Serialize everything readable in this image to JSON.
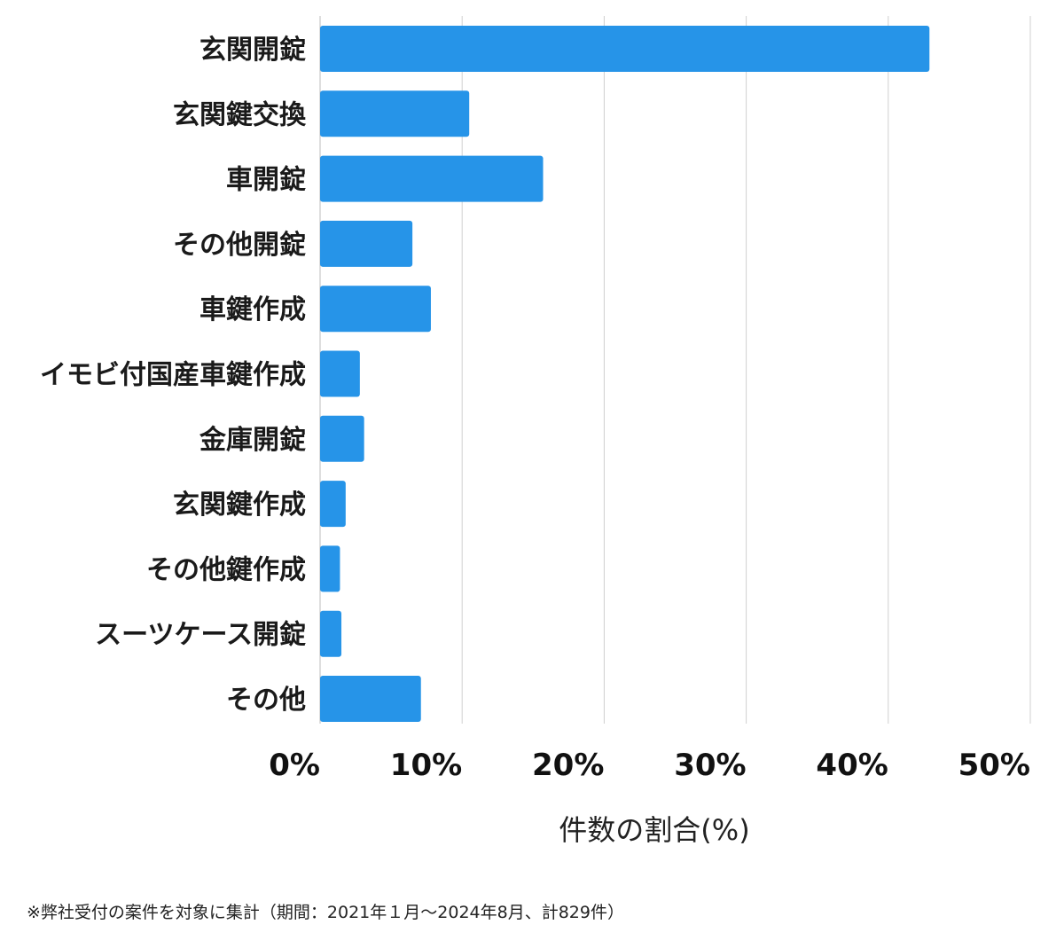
{
  "chart_data": {
    "type": "bar",
    "orientation": "horizontal",
    "categories": [
      "玄関開錠",
      "玄関鍵交換",
      "車開錠",
      "その他開錠",
      "車鍵作成",
      "イモビ付国産車鍵作成",
      "金庫開錠",
      "玄関鍵作成",
      "その他鍵作成",
      "スーツケース開錠",
      "その他"
    ],
    "values": [
      42.9,
      10.5,
      15.7,
      6.5,
      7.8,
      2.8,
      3.1,
      1.8,
      1.4,
      1.5,
      7.1
    ],
    "xlabel": "件数の割合(%)",
    "ylabel": "",
    "xlim": [
      0,
      50
    ],
    "xticks": [
      "0%",
      "10%",
      "20%",
      "30%",
      "40%",
      "50%"
    ],
    "grid": true,
    "bar_color": "#2694e8",
    "grid_color": "#d0d0d0"
  },
  "footnote": "※弊社受付の案件を対象に集計（期間：2021年１月〜2024年8月、計829件）"
}
